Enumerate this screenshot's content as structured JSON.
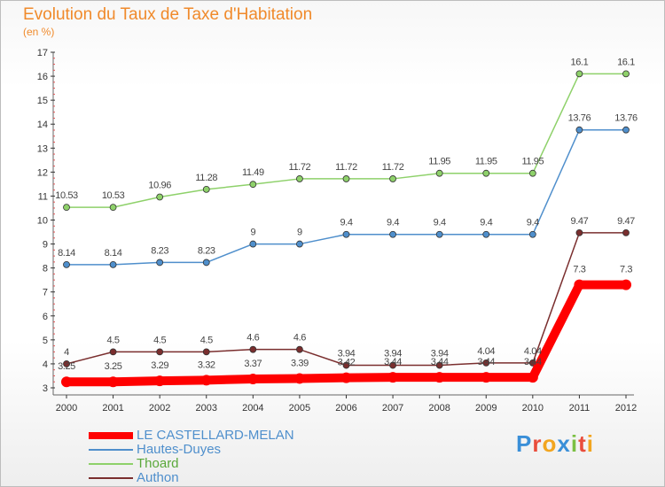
{
  "title": "Evolution du Taux de Taxe d'Habitation",
  "subtitle": "(en %)",
  "logo": "Proxiti",
  "chart_data": {
    "type": "line",
    "x": [
      "2000",
      "2001",
      "2002",
      "2003",
      "2004",
      "2005",
      "2006",
      "2007",
      "2008",
      "2009",
      "2010",
      "2011",
      "2012"
    ],
    "ylim": [
      3,
      17
    ],
    "yticks": [
      3,
      4,
      5,
      6,
      7,
      8,
      9,
      10,
      11,
      12,
      13,
      14,
      15,
      16,
      17
    ],
    "grid": false,
    "legend_position": "bottom-left",
    "series": [
      {
        "name": "LE CASTELLARD-MELAN",
        "color": "#ff0000",
        "values": [
          3.25,
          3.25,
          3.29,
          3.32,
          3.37,
          3.39,
          3.42,
          3.44,
          3.44,
          3.44,
          3.44,
          7.3,
          7.3
        ],
        "labels": [
          "3.25",
          "3.25",
          "3.29",
          "3.32",
          "3.37",
          "3.39",
          "3.42",
          "3.44",
          "3.44",
          "3.44",
          "3.44",
          "7.3",
          "7.3"
        ]
      },
      {
        "name": "Hautes-Duyes",
        "color": "#4f8fcc",
        "values": [
          8.14,
          8.14,
          8.23,
          8.23,
          9,
          9,
          9.4,
          9.4,
          9.4,
          9.4,
          9.4,
          13.76,
          13.76
        ],
        "labels": [
          "8.14",
          "8.14",
          "8.23",
          "8.23",
          "9",
          "9",
          "9.4",
          "9.4",
          "9.4",
          "9.4",
          "9.4",
          "13.76",
          "13.76"
        ]
      },
      {
        "name": "Thoard",
        "color": "#8ed16a",
        "values": [
          10.53,
          10.53,
          10.96,
          11.28,
          11.49,
          11.72,
          11.72,
          11.72,
          11.95,
          11.95,
          11.95,
          16.1,
          16.1
        ],
        "labels": [
          "10.53",
          "10.53",
          "10.96",
          "11.28",
          "11.49",
          "11.72",
          "11.72",
          "11.72",
          "11.95",
          "11.95",
          "11.95",
          "16.1",
          "16.1"
        ]
      },
      {
        "name": "Authon",
        "color": "#7a2e2e",
        "values": [
          4,
          4.5,
          4.5,
          4.5,
          4.6,
          4.6,
          3.94,
          3.94,
          3.94,
          4.04,
          4.04,
          9.47,
          9.47
        ],
        "labels": [
          "4",
          "4.5",
          "4.5",
          "4.5",
          "4.6",
          "4.6",
          "3.94",
          "3.94",
          "3.94",
          "4.04",
          "4.04",
          "9.47",
          "9.47"
        ]
      }
    ]
  }
}
